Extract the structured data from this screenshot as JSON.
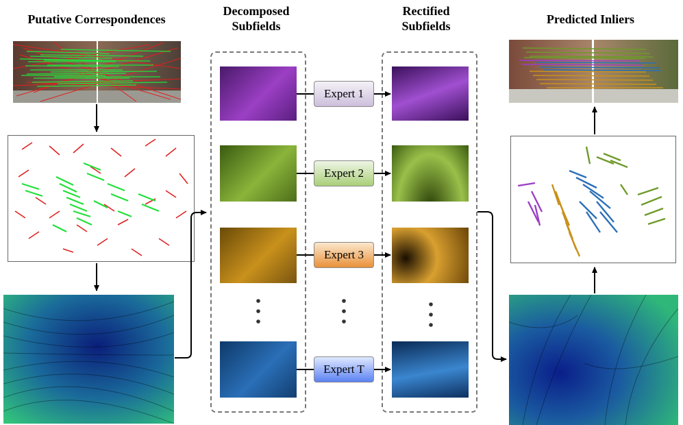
{
  "titles": {
    "putative": "Putative Correspondences",
    "decomposed": "Decomposed Subfields",
    "rectified": "Rectified Subfields",
    "predicted": "Predicted Inliers"
  },
  "experts": [
    {
      "label": "Expert 1",
      "color_top": "#f4f1f7",
      "color_bottom": "#cdbfdc"
    },
    {
      "label": "Expert 2",
      "color_top": "#eef5e4",
      "color_bottom": "#a9cf79"
    },
    {
      "label": "Expert 3",
      "color_top": "#fbe7cd",
      "color_bottom": "#e9913a"
    },
    {
      "label": "Expert T",
      "color_top": "#dfe8ff",
      "color_bottom": "#5b82f2"
    }
  ],
  "colors": {
    "purple": "#9b3fc4",
    "green": "#6e9a2a",
    "orange": "#c9911c",
    "blue": "#2a6fb7",
    "inlier_green": "#22e03a",
    "outlier_red": "#e02020",
    "flow_field": "#1f8f8f"
  }
}
